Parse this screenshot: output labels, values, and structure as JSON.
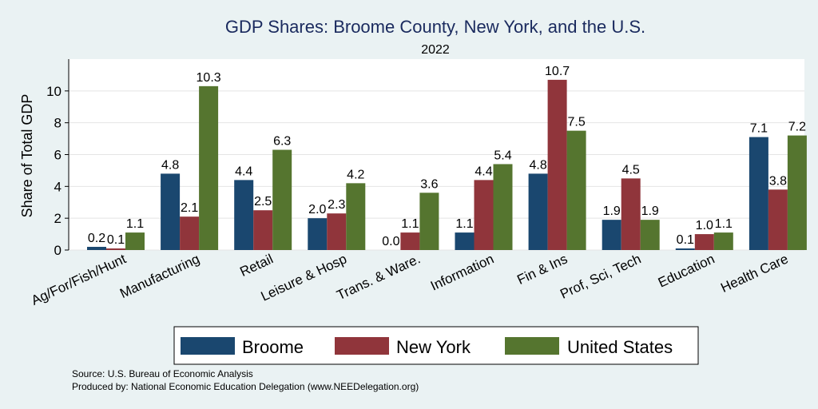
{
  "chart_data": {
    "type": "bar",
    "title": "GDP Shares: Broome County, New York, and the U.S.",
    "subtitle": "2022",
    "xlabel": "",
    "ylabel": "Share of Total GDP",
    "ylim": [
      0,
      12
    ],
    "yticks": [
      0,
      2,
      4,
      6,
      8,
      10
    ],
    "grid": true,
    "legend_position": "bottom",
    "categories": [
      "Ag/For/Fish/Hunt",
      "Manufacturing",
      "Retail",
      "Leisure & Hosp",
      "Trans. & Ware.",
      "Information",
      "Fin & Ins",
      "Prof, Sci, Tech",
      "Education",
      "Health Care"
    ],
    "series": [
      {
        "name": "Broome",
        "color": "#1a476f",
        "values": [
          0.2,
          4.8,
          4.4,
          2.0,
          0.0,
          1.1,
          4.8,
          1.9,
          0.1,
          7.1
        ]
      },
      {
        "name": "New York",
        "color": "#90353b",
        "values": [
          0.1,
          2.1,
          2.5,
          2.3,
          1.1,
          4.4,
          10.7,
          4.5,
          1.0,
          3.8
        ]
      },
      {
        "name": "United States",
        "color": "#55752f",
        "values": [
          1.1,
          10.3,
          6.3,
          4.2,
          3.6,
          5.4,
          7.5,
          1.9,
          1.1,
          7.2
        ]
      }
    ]
  },
  "notes": {
    "source": "Source: U.S. Bureau of Economic Analysis",
    "produced_by": "Produced by: National Economic Education Delegation (www.NEEDelegation.org)"
  }
}
